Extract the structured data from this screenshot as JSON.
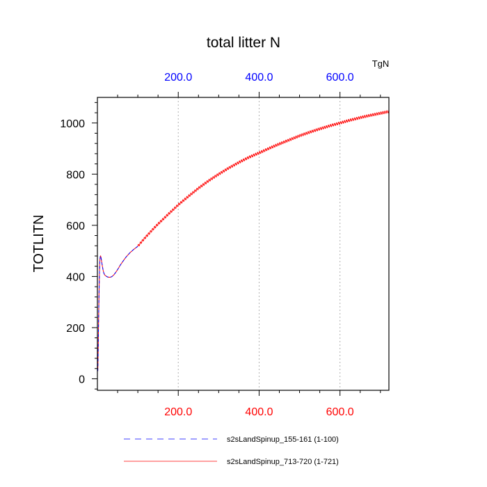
{
  "chart_data": {
    "type": "line",
    "title": "total litter N",
    "units": "TgN",
    "ylabel": "TOTLITN",
    "xlabel": "",
    "xlim": [
      0,
      721
    ],
    "ylim": [
      -45,
      1100
    ],
    "grid": "vertical dotted at top-axis ticks",
    "bottom_ticks": {
      "values": [
        200,
        400,
        600
      ],
      "labels": [
        "200.0",
        "400.0",
        "600.0"
      ],
      "color": "#ff0000"
    },
    "top_ticks": {
      "values": [
        200,
        400,
        600
      ],
      "labels": [
        "200.0",
        "400.0",
        "600.0"
      ],
      "color": "#0000ff"
    },
    "y_ticks": {
      "values": [
        0,
        200,
        400,
        600,
        800,
        1000
      ],
      "labels": [
        "0",
        "200",
        "400",
        "600",
        "800",
        "1000"
      ]
    },
    "legend_placement": "bottom",
    "series": [
      {
        "name": "s2sLandSpinup_155-161 (1-100)",
        "color": "#0000ff",
        "style": "dashed",
        "x": [
          1,
          2,
          3,
          4,
          5,
          6,
          7,
          8,
          9,
          10,
          12,
          14,
          16,
          18,
          20,
          22,
          25,
          28,
          31,
          34,
          37,
          40,
          44,
          48,
          52,
          56,
          60,
          64,
          68,
          72,
          76,
          80,
          85,
          90,
          95,
          100
        ],
        "y": [
          30,
          120,
          230,
          330,
          410,
          460,
          478,
          480,
          474,
          463,
          443,
          425,
          413,
          406,
          403,
          401,
          398,
          397,
          397,
          398,
          401,
          405,
          413,
          422,
          432,
          443,
          452,
          461,
          470,
          478,
          485,
          492,
          499,
          506,
          512,
          518
        ]
      },
      {
        "name": "s2sLandSpinup_713-720 (1-721)",
        "color": "#ff0000",
        "style": "solid",
        "x": [
          1,
          2,
          3,
          4,
          5,
          6,
          7,
          8,
          9,
          10,
          12,
          14,
          16,
          18,
          20,
          22,
          25,
          28,
          31,
          34,
          37,
          40,
          44,
          48,
          52,
          56,
          60,
          64,
          68,
          72,
          76,
          80,
          85,
          90,
          95,
          100,
          110,
          120,
          130,
          140,
          150,
          160,
          175,
          190,
          200,
          225,
          250,
          275,
          300,
          325,
          350,
          375,
          400,
          425,
          450,
          475,
          500,
          525,
          550,
          575,
          600,
          625,
          650,
          675,
          700,
          721
        ],
        "y": [
          30,
          120,
          230,
          330,
          410,
          460,
          478,
          480,
          474,
          463,
          443,
          425,
          413,
          406,
          403,
          401,
          398,
          397,
          397,
          398,
          401,
          405,
          413,
          422,
          432,
          443,
          452,
          461,
          470,
          478,
          485,
          492,
          499,
          506,
          512,
          518,
          537,
          555,
          572,
          589,
          605,
          620,
          643,
          665,
          680,
          713,
          745,
          774,
          800,
          824,
          846,
          866,
          883,
          901,
          918,
          934,
          950,
          964,
          977,
          989,
          1000,
          1011,
          1021,
          1030,
          1038,
          1045
        ],
        "annual_wiggle": 5
      }
    ]
  }
}
